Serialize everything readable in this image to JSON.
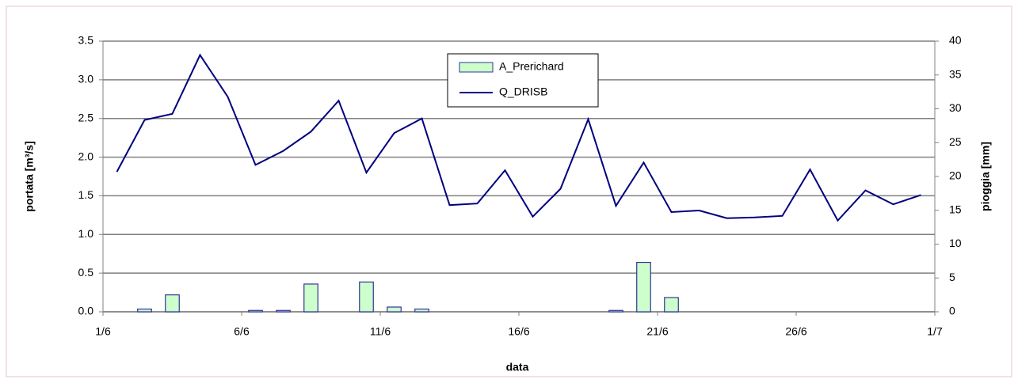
{
  "chart_data": {
    "type": "bar-line",
    "x_label": "data",
    "y_label": "portata [m³/s]",
    "y2_label": "pioggia [mm]",
    "x": [
      0.5,
      1.5,
      2.5,
      3.5,
      4.5,
      5.5,
      6.5,
      7.5,
      8.5,
      9.5,
      10.5,
      11.5,
      12.5,
      13.5,
      14.5,
      15.5,
      16.5,
      17.5,
      18.5,
      19.5,
      20.5,
      21.5,
      22.5,
      23.5,
      24.5,
      25.5,
      26.5,
      27.5,
      28.5,
      29.5
    ],
    "xlim": [
      0,
      30
    ],
    "xticks": [
      {
        "value": 0,
        "label": "1/6"
      },
      {
        "value": 5,
        "label": "6/6"
      },
      {
        "value": 10,
        "label": "11/6"
      },
      {
        "value": 15,
        "label": "16/6"
      },
      {
        "value": 20,
        "label": "21/6"
      },
      {
        "value": 25,
        "label": "26/6"
      },
      {
        "value": 30,
        "label": "1/7"
      }
    ],
    "ylim": [
      0,
      3.5
    ],
    "yticks": [
      {
        "value": 0,
        "label": "0.0"
      },
      0.5,
      {
        "value": 1,
        "label": "1.0"
      },
      1.5,
      {
        "value": 2,
        "label": "2.0"
      },
      2.5,
      {
        "value": 3,
        "label": "3.0"
      },
      3.5
    ],
    "y2lim": [
      0,
      40
    ],
    "y2ticks": [
      0,
      5,
      10,
      15,
      20,
      25,
      30,
      35,
      40
    ],
    "grid": true,
    "series": [
      {
        "name": "A_Prerichard",
        "type": "bar",
        "axis": "y2",
        "color": "#ccffcc",
        "values": [
          0,
          0.4,
          2.5,
          0,
          0,
          0.2,
          0.2,
          4.1,
          0,
          4.4,
          0.7,
          0.4,
          0,
          0,
          0,
          0,
          0,
          0,
          0.2,
          7.3,
          2.1,
          0,
          0,
          0,
          0,
          0,
          0,
          0,
          0,
          0
        ]
      },
      {
        "name": "Q_DRISB",
        "type": "line",
        "color": "#000080",
        "values": [
          1.81,
          2.48,
          2.56,
          3.32,
          2.78,
          1.9,
          2.08,
          2.33,
          2.73,
          1.8,
          2.31,
          2.5,
          1.38,
          1.4,
          1.83,
          1.23,
          1.59,
          2.49,
          1.37,
          1.93,
          1.29,
          1.31,
          1.21,
          1.22,
          1.24,
          1.84,
          1.18,
          1.57,
          1.39,
          1.51
        ]
      }
    ]
  }
}
